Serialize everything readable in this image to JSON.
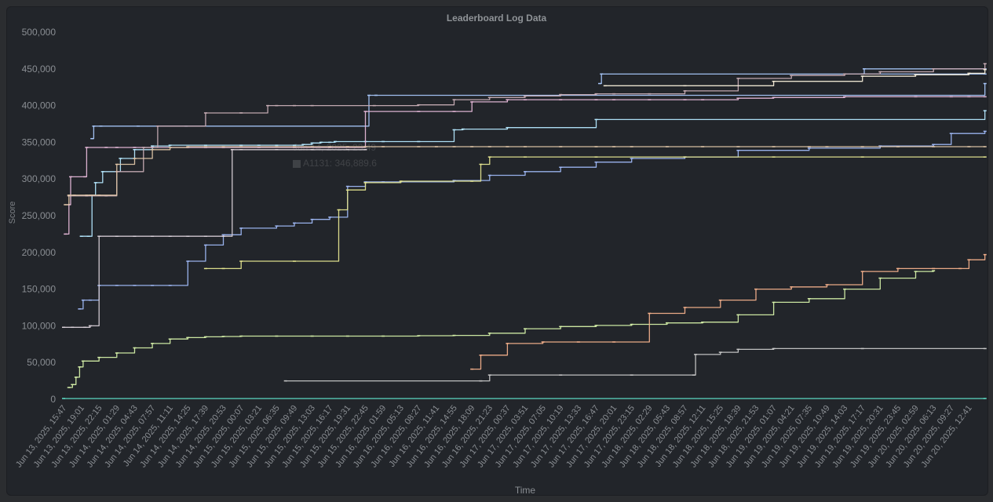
{
  "chart_data": {
    "type": "line",
    "title": "Leaderboard Log Data",
    "xlabel": "Time",
    "ylabel": "Score",
    "ylim": [
      0,
      500000
    ],
    "yticks": [
      "0",
      "50,000",
      "100,000",
      "150,000",
      "200,000",
      "250,000",
      "300,000",
      "350,000",
      "400,000",
      "450,000",
      "500,000"
    ],
    "grid": false,
    "legend": "none",
    "x_ticks": [
      "Jun 13, 2025, 15:47",
      "Jun 13, 2025, 19:01",
      "Jun 13, 2025, 22:15",
      "Jun 14, 2025, 01:29",
      "Jun 14, 2025, 04:43",
      "Jun 14, 2025, 07:57",
      "Jun 14, 2025, 11:11",
      "Jun 14, 2025, 14:25",
      "Jun 14, 2025, 17:39",
      "Jun 14, 2025, 20:53",
      "Jun 15, 2025, 00:07",
      "Jun 15, 2025, 03:21",
      "Jun 15, 2025, 06:35",
      "Jun 15, 2025, 09:49",
      "Jun 15, 2025, 13:03",
      "Jun 15, 2025, 16:17",
      "Jun 15, 2025, 19:31",
      "Jun 15, 2025, 22:45",
      "Jun 16, 2025, 01:59",
      "Jun 16, 2025, 05:13",
      "Jun 16, 2025, 08:27",
      "Jun 16, 2025, 11:41",
      "Jun 16, 2025, 14:55",
      "Jun 16, 2025, 18:09",
      "Jun 16, 2025, 21:23",
      "Jun 17, 2025, 00:37",
      "Jun 17, 2025, 03:51",
      "Jun 17, 2025, 07:05",
      "Jun 17, 2025, 10:19",
      "Jun 17, 2025, 13:33",
      "Jun 17, 2025, 16:47",
      "Jun 17, 2025, 20:01",
      "Jun 17, 2025, 23:15",
      "Jun 18, 2025, 02:29",
      "Jun 18, 2025, 05:43",
      "Jun 18, 2025, 08:57",
      "Jun 18, 2025, 12:11",
      "Jun 18, 2025, 15:25",
      "Jun 18, 2025, 18:39",
      "Jun 18, 2025, 21:53",
      "Jun 19, 2025, 01:07",
      "Jun 19, 2025, 04:21",
      "Jun 19, 2025, 07:35",
      "Jun 19, 2025, 10:49",
      "Jun 19, 2025, 14:03",
      "Jun 19, 2025, 17:17",
      "Jun 19, 2025, 20:31",
      "Jun 19, 2025, 23:45",
      "Jun 20, 2025, 02:59",
      "Jun 20, 2025, 06:13",
      "Jun 20, 2025, 09:27",
      "Jun 20, 2025, 12:41"
    ],
    "tooltip": {
      "time": "Jun 14, 2025, 23:49",
      "label": "A1131: 346,889.6"
    },
    "series": [
      {
        "color": "#a8c7fa",
        "x": [
          1.6,
          1.7,
          2.1,
          4.2,
          6.9,
          17.2,
          17.6,
          51.9
        ],
        "y": [
          355000,
          372000,
          372000,
          372000,
          372000,
          414000,
          414000,
          430000
        ]
      },
      {
        "color": "#a8c7fa",
        "x": [
          30.2,
          30.3,
          51.9
        ],
        "y": [
          430000,
          443000,
          443000
        ]
      },
      {
        "color": "#a8c7fa",
        "x": [
          45.0,
          45.1,
          51.9
        ],
        "y": [
          443000,
          450000,
          450000
        ]
      },
      {
        "color": "#b5e8ff",
        "x": [
          1.0,
          1.4,
          1.6,
          1.8,
          2.2,
          3.2,
          4.0,
          5.0,
          6.0,
          8.0,
          10.0,
          11.0,
          12.0,
          13.0,
          13.5,
          14.0,
          14.5,
          15.0,
          15.3,
          17.0,
          18.0,
          20.0,
          22.0,
          22.5,
          25.0,
          30.0,
          51.9
        ],
        "y": [
          222000,
          222000,
          278000,
          295000,
          310000,
          328000,
          340000,
          345000,
          346000,
          346000,
          346000,
          346000,
          346000,
          346000,
          347000,
          349000,
          350000,
          350000,
          351000,
          351000,
          351000,
          351000,
          367000,
          368000,
          370000,
          381000,
          393000
        ]
      },
      {
        "color": "#9fb8f5",
        "x": [
          0.9,
          1.1,
          1.5,
          2.0,
          3.0,
          4.0,
          5.0,
          6.0,
          7.0,
          8.0,
          9.0,
          10.0,
          12.0,
          13.0,
          14.0,
          15.0,
          16.0,
          17.0,
          18.0,
          22.0,
          24.0,
          26.0,
          28.0,
          30.0,
          32.0,
          35.0,
          38.0,
          42.0,
          46.0,
          49.0,
          50.0,
          51.9
        ],
        "y": [
          123000,
          135000,
          135000,
          155000,
          155000,
          155000,
          155000,
          155000,
          188000,
          210000,
          224000,
          233000,
          236000,
          240000,
          245000,
          248000,
          290000,
          296000,
          296000,
          298000,
          305000,
          310000,
          316000,
          323000,
          328000,
          330000,
          339000,
          342000,
          345000,
          347000,
          362000,
          365000
        ]
      },
      {
        "color": "#e6b8d8",
        "x": [
          0.1,
          0.3,
          0.4,
          1.2,
          1.3,
          2.4,
          3.0,
          4.0,
          5.0,
          7.0,
          8.0,
          9.0,
          11.0,
          13.0,
          15.0,
          17.0,
          20.0,
          22.0,
          23.0,
          25.0,
          26.0,
          28.0,
          30.0,
          31.0,
          33.0,
          35.0,
          36.0,
          38.0,
          40.0,
          44.0,
          48.0,
          50.0,
          51.0,
          51.9
        ],
        "y": [
          225000,
          265000,
          303000,
          303000,
          343000,
          343000,
          343000,
          343000,
          343000,
          343000,
          343000,
          343000,
          343000,
          343000,
          343000,
          392000,
          392000,
          392000,
          405000,
          408000,
          408000,
          408000,
          408000,
          408000,
          408000,
          408000,
          408000,
          410000,
          411000,
          412000,
          412000,
          412000,
          412000,
          412000
        ]
      },
      {
        "color": "#c9aeb6",
        "x": [
          0.3,
          1.3,
          2.4,
          3.0,
          4.5,
          5.3,
          8.0,
          10.0,
          11.5,
          12.0,
          13.0,
          14.0,
          17.5,
          20.0,
          22.0,
          24.0,
          26.0,
          28.0,
          30.0,
          31.0,
          33.0,
          35.0,
          38.0,
          41.0,
          44.0,
          46.0,
          49.0,
          51.9
        ],
        "y": [
          277000,
          277000,
          277000,
          310000,
          343000,
          372000,
          390000,
          390000,
          400000,
          400000,
          400000,
          400000,
          400000,
          401000,
          408000,
          411000,
          413000,
          415000,
          416000,
          416000,
          416000,
          420000,
          437000,
          441000,
          443000,
          446000,
          450000,
          457000
        ]
      },
      {
        "color": "#e0c6a8",
        "x": [
          0.1,
          0.3,
          0.6,
          1.3,
          1.5,
          1.6,
          2.0,
          3.0,
          4.0,
          5.0,
          6.0,
          7.0,
          8.0,
          9.0,
          10.0,
          12.0,
          13.0,
          14.0,
          15.0,
          16.0,
          17.0,
          18.0,
          20.0,
          21.0,
          22.0,
          23.0,
          24.0,
          25.0,
          26.0,
          28.0,
          30.0,
          31.0,
          32.0,
          34.0,
          36.0,
          38.0,
          40.0,
          42.0,
          43.0,
          45.0,
          47.0,
          49.0,
          51.0,
          51.9
        ],
        "y": [
          265000,
          278000,
          278000,
          278000,
          278000,
          278000,
          278000,
          320000,
          328000,
          340000,
          343000,
          344000,
          344000,
          344000,
          344000,
          344000,
          344000,
          344000,
          344000,
          344000,
          344000,
          344000,
          344000,
          344000,
          344000,
          344000,
          344000,
          344000,
          344000,
          344000,
          344000,
          344000,
          344000,
          344000,
          344000,
          344000,
          344000,
          344000,
          344000,
          344000,
          344000,
          344000,
          344000,
          344000
        ]
      },
      {
        "color": "#d9d0d8",
        "x": [
          0.0,
          0.5,
          1.2,
          1.5,
          2.0,
          3.0,
          4.0,
          5.0,
          6.0,
          7.0,
          8.0,
          9.0,
          9.5,
          10.0,
          12.0,
          14.0,
          16.0,
          17.0
        ],
        "y": [
          98000,
          98000,
          98000,
          100000,
          222000,
          222000,
          222000,
          222000,
          222000,
          222000,
          222000,
          222000,
          340000,
          340000,
          340000,
          340000,
          340000,
          340000
        ]
      },
      {
        "color": "#f5ecd8",
        "x": [
          30.5,
          35.0,
          40.0,
          45.0,
          48.0,
          51.0,
          51.9
        ],
        "y": [
          427000,
          427000,
          433000,
          440000,
          442000,
          444000,
          449000
        ]
      },
      {
        "color": "#e5e58f",
        "x": [
          8.0,
          9.0,
          10.0,
          13.0,
          15.5,
          16.0,
          17.0,
          19.0,
          23.0,
          23.5,
          24.0,
          26.0,
          30.0,
          35.0,
          40.0,
          45.0,
          51.9
        ],
        "y": [
          178000,
          178000,
          188000,
          188000,
          258000,
          285000,
          295000,
          297000,
          297000,
          320000,
          330000,
          330000,
          330000,
          330000,
          330000,
          330000,
          330000
        ]
      },
      {
        "color": "#d5f0a8",
        "x": [
          0.3,
          0.5,
          0.7,
          0.9,
          1.1,
          2.0,
          3.0,
          4.0,
          5.0,
          6.0,
          7.0,
          8.0,
          9.0,
          10.0,
          12.0,
          14.0,
          16.0,
          18.0,
          20.0,
          22.0,
          24.0,
          26.0,
          28.0,
          30.0,
          32.0,
          34.0,
          36.0,
          38.0,
          40.0,
          42.0,
          44.0,
          46.0,
          48.0,
          49.0
        ],
        "y": [
          16000,
          20000,
          30000,
          44000,
          52000,
          57000,
          63000,
          70000,
          76000,
          82000,
          84000,
          85000,
          85500,
          86000,
          86000,
          86000,
          86000,
          86000,
          86500,
          87000,
          90000,
          96000,
          99000,
          100500,
          102000,
          104000,
          105000,
          115000,
          132000,
          137000,
          150000,
          165000,
          174000,
          175000
        ]
      },
      {
        "color": "#f4b08b",
        "x": [
          23.0,
          23.5,
          25.0,
          27.0,
          29.0,
          31.0,
          33.0,
          35.0,
          37.0,
          39.0,
          41.0,
          43.0,
          45.0,
          47.0,
          49.0,
          50.5,
          51.0,
          51.9
        ],
        "y": [
          41000,
          60000,
          76000,
          78000,
          78000,
          78000,
          117000,
          125000,
          135000,
          150000,
          153000,
          156000,
          174000,
          178000,
          178000,
          178000,
          190000,
          197000
        ]
      },
      {
        "color": "#c8c8c8",
        "x": [
          12.5,
          23.5,
          24.0,
          28.0,
          32.0,
          35.5,
          35.6,
          37.0,
          38.0,
          40.0,
          45.0,
          51.9
        ],
        "y": [
          25000,
          25000,
          33000,
          33000,
          33000,
          33000,
          61000,
          64000,
          68000,
          69000,
          69000,
          69000
        ]
      },
      {
        "color": "#5fe0c8",
        "x": [
          0.0,
          51.9
        ],
        "y": [
          1000,
          1000
        ]
      }
    ]
  }
}
